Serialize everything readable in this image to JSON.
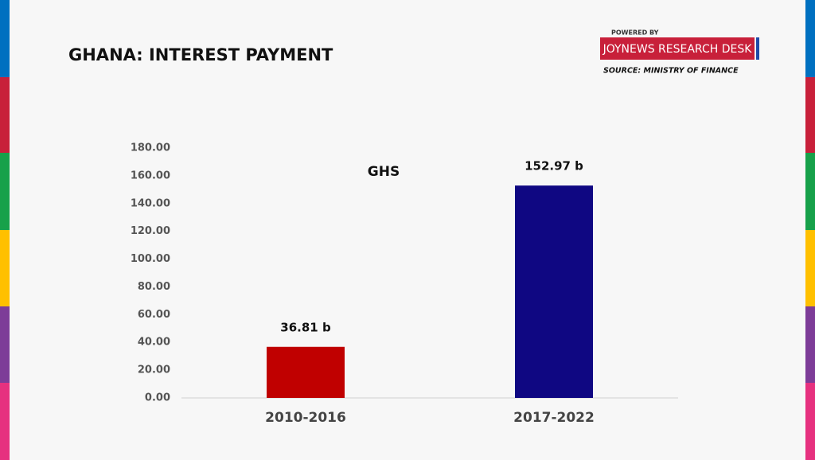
{
  "chart_data": {
    "type": "bar",
    "title": "GHANA: INTEREST PAYMENT",
    "powered_by": "POWERED BY",
    "brand": "JOYNEWS RESEARCH DESK",
    "source": "SOURCE: MINISTRY OF FINANCE",
    "annotation": "GHS",
    "categories": [
      "2010-2016",
      "2017-2022"
    ],
    "values": [
      36.81,
      152.97
    ],
    "value_labels": [
      "36.81 b",
      "152.97 b"
    ],
    "colors": [
      "#c00000",
      "#0f0782"
    ],
    "ylim": [
      0,
      180
    ],
    "yticks": [
      {
        "value": 0,
        "label": "0.00"
      },
      {
        "value": 20,
        "label": "20.00"
      },
      {
        "value": 40,
        "label": "40.00"
      },
      {
        "value": 60,
        "label": "60.00"
      },
      {
        "value": 80,
        "label": "80.00"
      },
      {
        "value": 100,
        "label": "100.00"
      },
      {
        "value": 120,
        "label": "120.00"
      },
      {
        "value": 140,
        "label": "140.00"
      },
      {
        "value": 160,
        "label": "160.00"
      },
      {
        "value": 180,
        "label": "180.00"
      }
    ],
    "grid": false
  }
}
